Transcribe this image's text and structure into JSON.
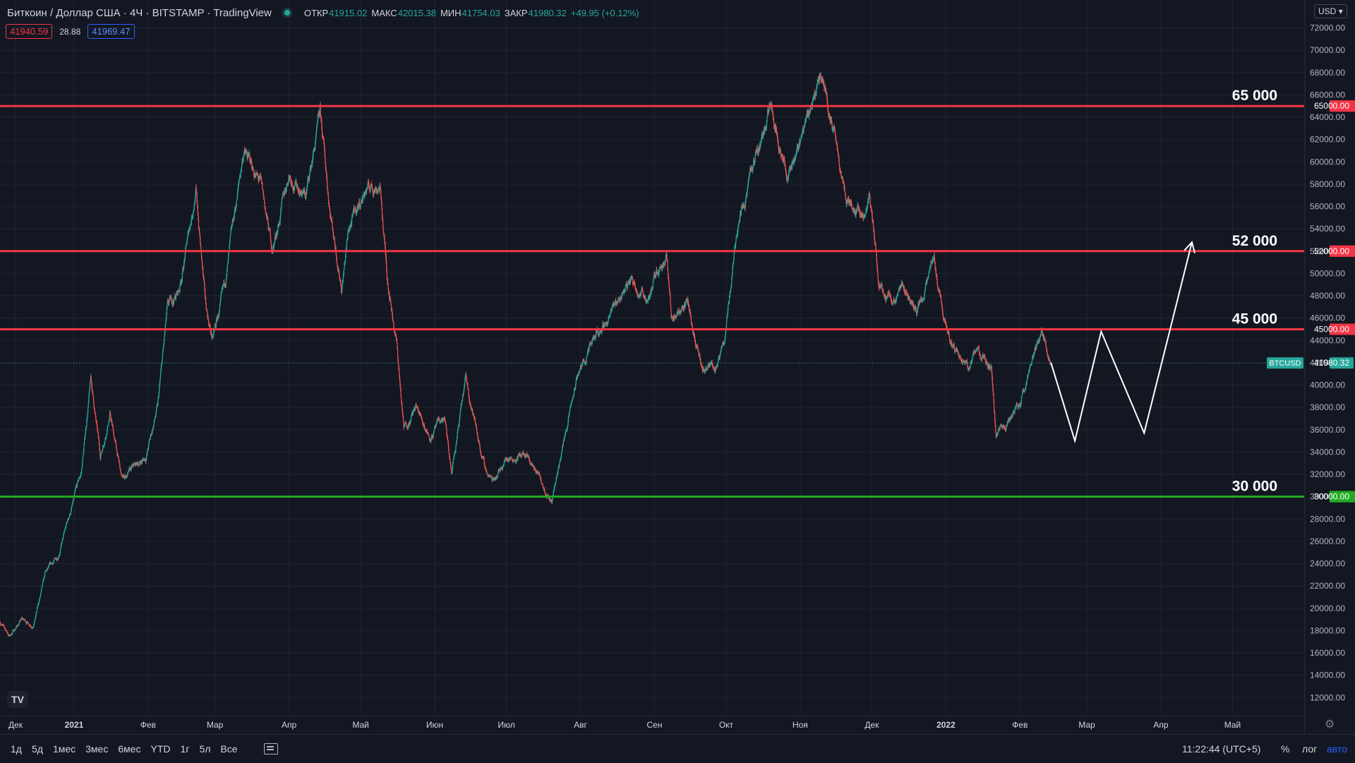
{
  "header": {
    "title": "Биткоин / Доллар США · 4Ч · BITSTAMP · TradingView",
    "ohlc": [
      {
        "label": "ОТКР",
        "value": "41915.02"
      },
      {
        "label": "МАКС",
        "value": "42015.38"
      },
      {
        "label": "МИН",
        "value": "41754.03"
      },
      {
        "label": "ЗАКР",
        "value": "41980.32"
      }
    ],
    "change": "+49.95 (+0.12%)",
    "bid": "41940.59",
    "spread": "28.88",
    "ask": "41969.47",
    "currency": "USD",
    "logo": "TV"
  },
  "bottom": {
    "ranges": [
      "1д",
      "5д",
      "1мес",
      "3мес",
      "6мес",
      "YTD",
      "1г",
      "5л",
      "Все"
    ],
    "clock": "11:22:44 (UTC+5)",
    "percent": "%",
    "log": "лог",
    "auto": "авто"
  },
  "colors": {
    "background": "#131722",
    "up": "#26a69a",
    "down": "#ef5350",
    "resistance": "#f23645",
    "support": "#22ab22",
    "grid": "#1f2430",
    "forecast": "#ffffff"
  },
  "chart_data": {
    "type": "candlestick",
    "symbol": "BTCUSD",
    "last_price": 41980.32,
    "y_axis": {
      "ticks": [
        12000,
        14000,
        16000,
        18000,
        20000,
        22000,
        24000,
        26000,
        28000,
        30000,
        32000,
        34000,
        36000,
        38000,
        40000,
        42000,
        44000,
        46000,
        48000,
        50000,
        52000,
        54000,
        56000,
        58000,
        60000,
        62000,
        64000,
        66000,
        68000,
        70000,
        72000
      ],
      "range": [
        10500,
        74500
      ],
      "tick_format": "00",
      "top_partial_label": "7"
    },
    "x_axis": {
      "labels": [
        "Дек",
        "2021",
        "Фев",
        "Мар",
        "Апр",
        "Май",
        "Июн",
        "Июл",
        "Авг",
        "Сен",
        "Окт",
        "Ноя",
        "Дек",
        "2022",
        "Фев",
        "Мар",
        "Апр",
        "Май"
      ],
      "bold": [
        "2021",
        "2022"
      ],
      "start": "2020-12-01",
      "end": "2022-05-31"
    },
    "levels": [
      {
        "value": 65000,
        "label": "65 000",
        "axis_label": "65000.00",
        "kind": "resistance"
      },
      {
        "value": 52000,
        "label": "52 000",
        "axis_label": "52000.00",
        "kind": "resistance"
      },
      {
        "value": 45000,
        "label": "45 000",
        "axis_label": "45000.00",
        "kind": "resistance"
      },
      {
        "value": 30000,
        "label": "30 000",
        "axis_label": "30000.00",
        "kind": "support"
      }
    ],
    "price_label": {
      "symbol": "BTCUSD",
      "value": "41980.32"
    },
    "price_path": [
      [
        "2020-12-01",
        18800
      ],
      [
        "2020-12-05",
        17500
      ],
      [
        "2020-12-10",
        19000
      ],
      [
        "2020-12-15",
        18500
      ],
      [
        "2020-12-20",
        23000
      ],
      [
        "2020-12-25",
        24500
      ],
      [
        "2020-12-31",
        29000
      ],
      [
        "2021-01-04",
        32000
      ],
      [
        "2021-01-08",
        40500
      ],
      [
        "2021-01-12",
        33500
      ],
      [
        "2021-01-16",
        37500
      ],
      [
        "2021-01-21",
        31500
      ],
      [
        "2021-01-26",
        32500
      ],
      [
        "2021-01-31",
        33500
      ],
      [
        "2021-02-05",
        38000
      ],
      [
        "2021-02-09",
        46500
      ],
      [
        "2021-02-14",
        48500
      ],
      [
        "2021-02-21",
        57500
      ],
      [
        "2021-02-25",
        47000
      ],
      [
        "2021-02-28",
        44000
      ],
      [
        "2021-03-05",
        48500
      ],
      [
        "2021-03-13",
        61000
      ],
      [
        "2021-03-20",
        58000
      ],
      [
        "2021-03-25",
        52000
      ],
      [
        "2021-04-01",
        59000
      ],
      [
        "2021-04-08",
        57000
      ],
      [
        "2021-04-14",
        64000
      ],
      [
        "2021-04-18",
        56000
      ],
      [
        "2021-04-23",
        49000
      ],
      [
        "2021-04-26",
        54000
      ],
      [
        "2021-05-03",
        57500
      ],
      [
        "2021-05-09",
        58000
      ],
      [
        "2021-05-12",
        50000
      ],
      [
        "2021-05-16",
        44000
      ],
      [
        "2021-05-19",
        36000
      ],
      [
        "2021-05-24",
        38000
      ],
      [
        "2021-05-30",
        35500
      ],
      [
        "2021-06-05",
        37000
      ],
      [
        "2021-06-08",
        32000
      ],
      [
        "2021-06-14",
        40500
      ],
      [
        "2021-06-22",
        32500
      ],
      [
        "2021-06-25",
        31500
      ],
      [
        "2021-07-01",
        33500
      ],
      [
        "2021-07-08",
        33800
      ],
      [
        "2021-07-15",
        31800
      ],
      [
        "2021-07-20",
        29800
      ],
      [
        "2021-07-25",
        35000
      ],
      [
        "2021-07-31",
        41000
      ],
      [
        "2021-08-07",
        44000
      ],
      [
        "2021-08-14",
        46500
      ],
      [
        "2021-08-22",
        49500
      ],
      [
        "2021-08-29",
        48000
      ],
      [
        "2021-09-06",
        52000
      ],
      [
        "2021-09-08",
        46000
      ],
      [
        "2021-09-15",
        47500
      ],
      [
        "2021-09-21",
        41000
      ],
      [
        "2021-09-28",
        42000
      ],
      [
        "2021-09-30",
        43500
      ],
      [
        "2021-10-06",
        55000
      ],
      [
        "2021-10-15",
        61500
      ],
      [
        "2021-10-20",
        65500
      ],
      [
        "2021-10-27",
        58500
      ],
      [
        "2021-11-02",
        63000
      ],
      [
        "2021-11-10",
        68000
      ],
      [
        "2021-11-15",
        63000
      ],
      [
        "2021-11-20",
        57000
      ],
      [
        "2021-11-28",
        55000
      ],
      [
        "2021-11-30",
        57000
      ],
      [
        "2021-12-04",
        49000
      ],
      [
        "2021-12-10",
        48000
      ],
      [
        "2021-12-15",
        48500
      ],
      [
        "2021-12-20",
        46500
      ],
      [
        "2021-12-27",
        51000
      ],
      [
        "2021-12-31",
        46500
      ],
      [
        "2022-01-05",
        43000
      ],
      [
        "2022-01-10",
        41500
      ],
      [
        "2022-01-14",
        43000
      ],
      [
        "2022-01-20",
        41000
      ],
      [
        "2022-01-22",
        35000
      ],
      [
        "2022-01-27",
        36500
      ],
      [
        "2022-02-01",
        38500
      ],
      [
        "2022-02-07",
        43000
      ],
      [
        "2022-02-10",
        44500
      ],
      [
        "2022-02-14",
        41980
      ]
    ],
    "forecast_path": [
      [
        "2022-02-14",
        41980
      ],
      [
        "2022-02-24",
        35000
      ],
      [
        "2022-03-07",
        44800
      ],
      [
        "2022-03-25",
        35700
      ],
      [
        "2022-04-14",
        52800
      ]
    ]
  }
}
